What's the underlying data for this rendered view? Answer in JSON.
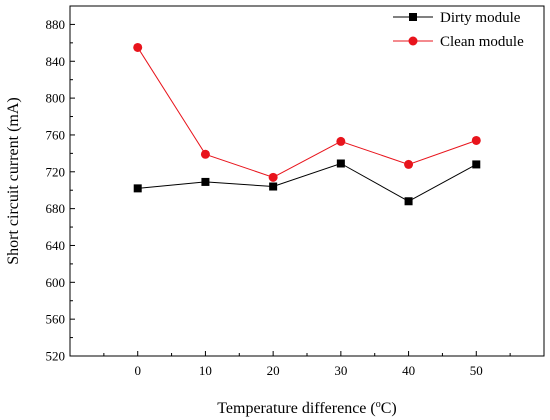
{
  "chart_data": {
    "type": "line",
    "x": [
      0,
      10,
      20,
      30,
      40,
      50
    ],
    "xlabel_main": "Temperature difference (",
    "xlabel_sup": "o",
    "xlabel_end": "C)",
    "ylabel": "Short circuit current (mA)",
    "xlim": [
      -10,
      60
    ],
    "ylim": [
      520,
      900
    ],
    "xticks": [
      0,
      10,
      20,
      30,
      40,
      50
    ],
    "yticks": [
      520,
      560,
      600,
      640,
      680,
      720,
      760,
      800,
      840,
      880
    ],
    "grid": false,
    "legend_position": "top-right",
    "series": [
      {
        "name": "Dirty module",
        "color": "#000000",
        "marker": "square",
        "values": [
          702,
          709,
          704,
          729,
          688,
          728
        ]
      },
      {
        "name": "Clean module",
        "color": "#e8141c",
        "marker": "circle",
        "values": [
          855,
          739,
          714,
          753,
          728,
          754
        ]
      }
    ]
  }
}
